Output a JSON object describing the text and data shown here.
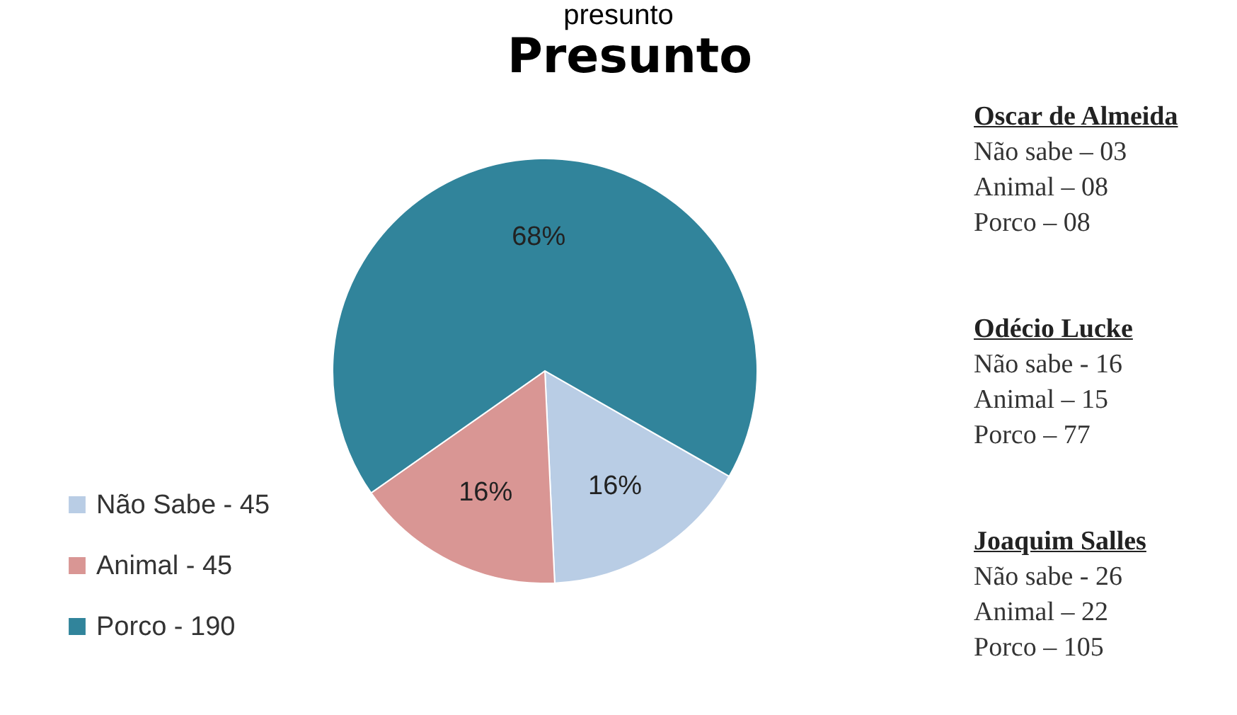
{
  "chart_data": {
    "type": "pie",
    "title": "Presunto",
    "categories": [
      "Não Sabe  - 45",
      "Animal - 45",
      "Porco  - 190"
    ],
    "values": [
      16,
      16,
      68
    ],
    "colors": [
      "#b9cde5",
      "#d99694",
      "#31849b"
    ],
    "value_labels": [
      "16%",
      "16%",
      "68%"
    ],
    "legend": "bottom left",
    "annotations": [
      "presunto",
      "Oscar de Almeida",
      "Não sabe – 03",
      "Animal – 08",
      "Porco – 08",
      "Odécio Lucke",
      "Não sabe - 16",
      "Animal – 15",
      "Porco – 77",
      "Joaquim Salles",
      "Não sabe - 26",
      "Animal – 22",
      "Porco – 105"
    ]
  }
}
